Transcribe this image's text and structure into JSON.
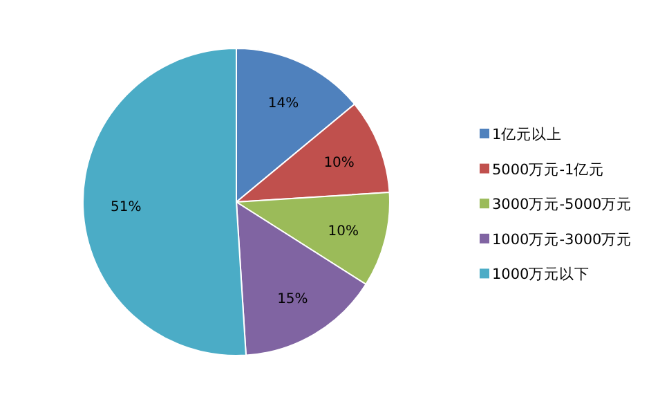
{
  "chart_data": {
    "type": "pie",
    "categories": [
      "1亿元以上",
      "5000万元-1亿元",
      "3000万元-5000万元",
      "1000万元-3000万元",
      "1000万元以下"
    ],
    "values": [
      14,
      10,
      10,
      15,
      51
    ],
    "colors": [
      "#4f81bd",
      "#c0504d",
      "#9bbb59",
      "#8064a2",
      "#4bacc6"
    ],
    "value_labels": [
      "14%",
      "10%",
      "10%",
      "15%",
      "51%"
    ],
    "legend": "right"
  }
}
